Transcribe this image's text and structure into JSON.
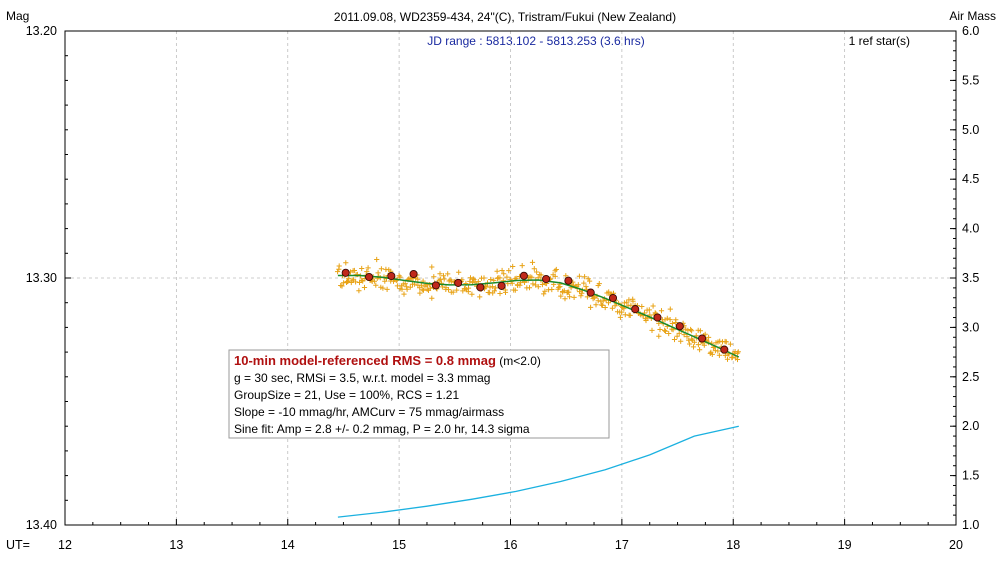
{
  "chart_data": {
    "type": "scatter",
    "title": "2011.09.08, WD2359-434, 24\"(C), Tristram/Fukui (New Zealand)",
    "subtitle": "JD range : 5813.102 - 5813.253 (3.6 hrs)",
    "ref_stars": "1 ref star(s)",
    "ylabel": "Mag",
    "y2label": "Air Mass",
    "xlabel": "UT=",
    "xlim": [
      12,
      20
    ],
    "ylim": [
      13.4,
      13.2
    ],
    "y2lim": [
      1.0,
      6.0
    ],
    "x_ticks": [
      "12",
      "13",
      "14",
      "15",
      "16",
      "17",
      "18",
      "19",
      "20"
    ],
    "y_ticks": [
      "13.20",
      "13.30",
      "13.40"
    ],
    "y2_ticks": [
      "1.0",
      "1.5",
      "2.0",
      "2.5",
      "3.0",
      "3.5",
      "4.0",
      "4.5",
      "5.0",
      "5.5",
      "6.0"
    ],
    "grid": true,
    "colors": {
      "raw": "#e8a317",
      "binned": "#c0281a",
      "model": "#1a8a2a",
      "airmass": "#1bb1e0"
    },
    "binned_points": {
      "x": [
        14.52,
        14.73,
        14.93,
        15.13,
        15.33,
        15.53,
        15.73,
        15.92,
        16.12,
        16.32,
        16.52,
        16.72,
        16.92,
        17.12,
        17.32,
        17.52,
        17.72,
        17.92
      ],
      "y": [
        13.2979,
        13.2996,
        13.2992,
        13.2984,
        13.303,
        13.302,
        13.3038,
        13.3032,
        13.2991,
        13.3004,
        13.3011,
        13.3059,
        13.3081,
        13.3126,
        13.316,
        13.3195,
        13.3245,
        13.329
      ]
    },
    "model_curve": {
      "x": [
        14.45,
        14.65,
        14.85,
        15.05,
        15.25,
        15.45,
        15.65,
        15.85,
        16.05,
        16.25,
        16.45,
        16.65,
        16.85,
        17.05,
        17.25,
        17.45,
        17.65,
        17.85,
        18.05
      ],
      "y": [
        13.299,
        13.299,
        13.2997,
        13.301,
        13.3022,
        13.3028,
        13.3027,
        13.302,
        13.301,
        13.3008,
        13.302,
        13.3048,
        13.3082,
        13.312,
        13.3158,
        13.3198,
        13.3238,
        13.3278,
        13.332
      ]
    },
    "airmass_curve": {
      "x": [
        14.45,
        14.85,
        15.25,
        15.65,
        16.05,
        16.45,
        16.85,
        17.25,
        17.65,
        18.05
      ],
      "y": [
        1.08,
        1.13,
        1.19,
        1.26,
        1.34,
        1.44,
        1.56,
        1.71,
        1.9,
        2.0
      ]
    }
  },
  "stats": {
    "line1_main": "10-min model-referenced RMS = 0.8 mmag",
    "line1_suffix": " (m<2.0)",
    "line2": "g = 30 sec, RMSi = 3.5, w.r.t. model = 3.3 mmag",
    "line3": "GroupSize = 21, Use = 100%, RCS = 1.21",
    "line4": "Slope = -10 mmag/hr, AMCurv = 75 mmag/airmass",
    "line5": "Sine fit: Amp = 2.8 +/- 0.2 mmag, P = 2.0 hr, 14.3 sigma"
  }
}
